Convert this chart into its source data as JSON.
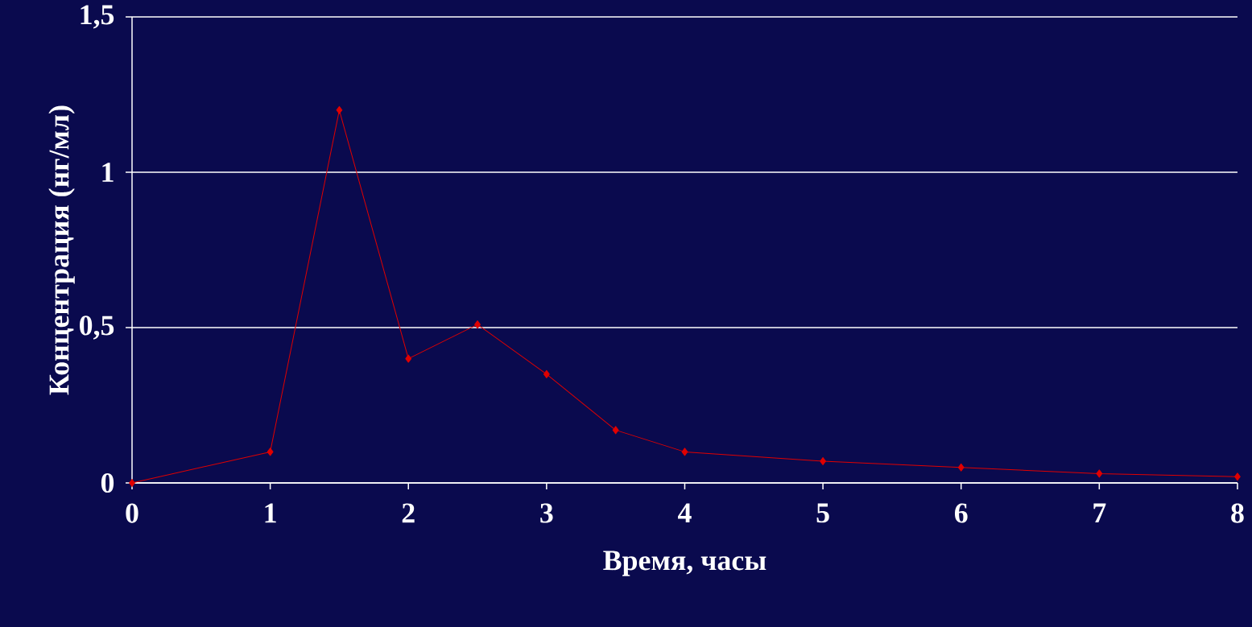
{
  "chart_data": {
    "type": "line",
    "xlabel": "Время, часы",
    "ylabel": "Концентрация (нг/мл)",
    "x": [
      0,
      1,
      1.5,
      2,
      2.5,
      3,
      3.5,
      4,
      5,
      6,
      7,
      8
    ],
    "series": [
      {
        "color": "#e00000",
        "values": [
          0,
          0.1,
          1.2,
          0.4,
          0.51,
          0.35,
          0.17,
          0.1,
          0.07,
          0.05,
          0.03,
          0.02
        ]
      }
    ],
    "xlim": [
      0,
      8
    ],
    "ylim": [
      0,
      1.5
    ],
    "xticks": [
      0,
      1,
      2,
      3,
      4,
      5,
      6,
      7,
      8
    ],
    "yticks": [
      0,
      {
        "value": 0.5,
        "label": "0,5"
      },
      1,
      {
        "value": 1.5,
        "label": "1,5"
      }
    ],
    "grid": "y",
    "marker": "diamond",
    "line_style": "solid"
  }
}
